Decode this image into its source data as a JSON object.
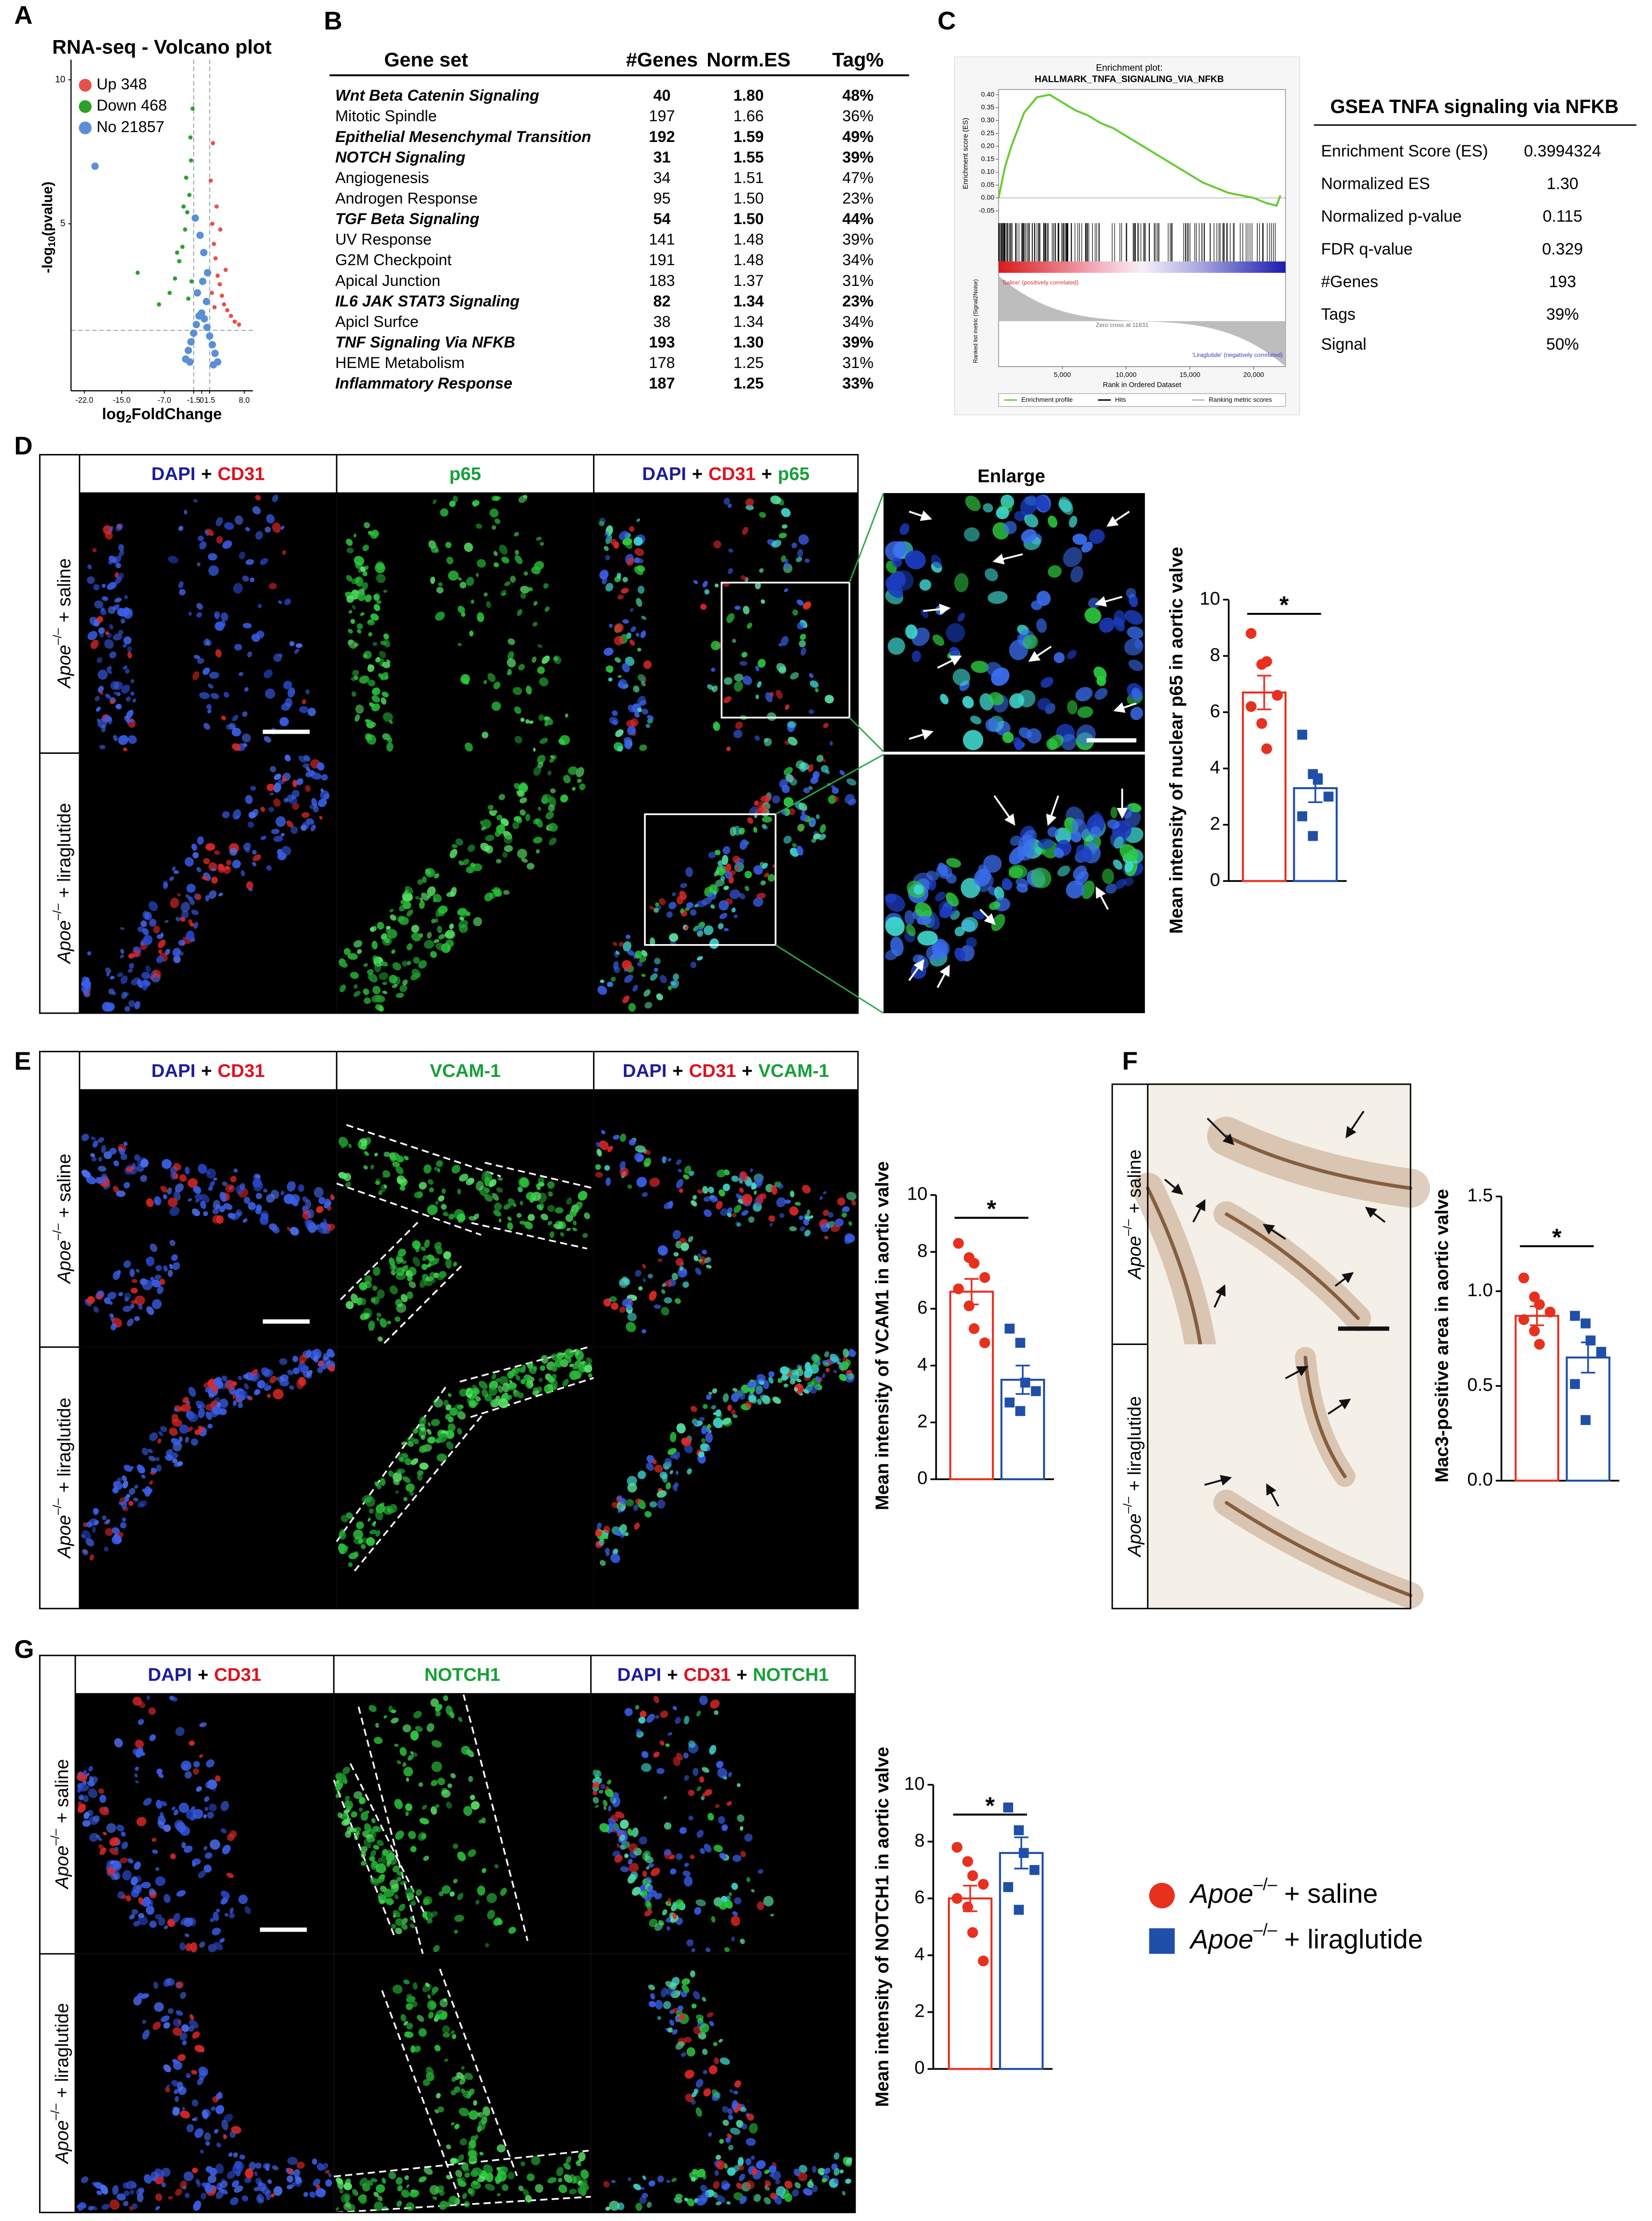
{
  "panels": [
    "A",
    "B",
    "C",
    "D",
    "E",
    "F",
    "G"
  ],
  "groups": [
    {
      "gene": "Apoe",
      "genotype": "–/–",
      "treatment": "+ saline",
      "color": "#e8301f",
      "marker": "circle"
    },
    {
      "gene": "Apoe",
      "genotype": "–/–",
      "treatment": "+ liraglutide",
      "color": "#1f4fa8",
      "marker": "square"
    }
  ],
  "table": {
    "columns": [
      "Gene set",
      "#Genes",
      "Norm.ES",
      "Tag%"
    ],
    "rows": [
      {
        "cells": [
          "Wnt Beta Catenin Signaling",
          "40",
          "1.80",
          "48%"
        ],
        "bold": true
      },
      {
        "cells": [
          "Mitotic Spindle",
          "197",
          "1.66",
          "36%"
        ],
        "bold": false
      },
      {
        "cells": [
          "Epithelial Mesenchymal Transition",
          "192",
          "1.59",
          "49%"
        ],
        "bold": true
      },
      {
        "cells": [
          "NOTCH Signaling",
          "31",
          "1.55",
          "39%"
        ],
        "bold": true
      },
      {
        "cells": [
          "Angiogenesis",
          "34",
          "1.51",
          "47%"
        ],
        "bold": false
      },
      {
        "cells": [
          "Androgen Response",
          "95",
          "1.50",
          "23%"
        ],
        "bold": false
      },
      {
        "cells": [
          "TGF Beta Signaling",
          "54",
          "1.50",
          "44%"
        ],
        "bold": true
      },
      {
        "cells": [
          "UV Response",
          "141",
          "1.48",
          "39%"
        ],
        "bold": false
      },
      {
        "cells": [
          "G2M Checkpoint",
          "191",
          "1.48",
          "34%"
        ],
        "bold": false
      },
      {
        "cells": [
          "Apical Junction",
          "183",
          "1.37",
          "31%"
        ],
        "bold": false
      },
      {
        "cells": [
          "IL6 JAK STAT3 Signaling",
          "82",
          "1.34",
          "23%"
        ],
        "bold": true
      },
      {
        "cells": [
          "Apicl Surfce",
          "38",
          "1.34",
          "34%"
        ],
        "bold": false
      },
      {
        "cells": [
          "TNF Signaling Via NFKB",
          "193",
          "1.30",
          "39%"
        ],
        "bold": true
      },
      {
        "cells": [
          "HEME Metabolism",
          "178",
          "1.25",
          "31%"
        ],
        "bold": false
      },
      {
        "cells": [
          "Inflammatory Response",
          "187",
          "1.25",
          "33%"
        ],
        "bold": true
      }
    ]
  },
  "gsea_table": {
    "title": "GSEA TNFA signaling via NFKB",
    "rows": [
      [
        "Enrichment Score (ES)",
        "0.3994324"
      ],
      [
        "Normalized ES",
        "1.30"
      ],
      [
        "Normalized p-value",
        "0.115"
      ],
      [
        "FDR q-value",
        "0.329"
      ],
      [
        "#Genes",
        "193"
      ],
      [
        "Tags",
        "39%"
      ],
      [
        "Signal",
        "50%"
      ]
    ]
  },
  "image_headers": {
    "D": [
      [
        {
          "text": "DAPI",
          "color": "#1c1c9c"
        },
        {
          "text": "+",
          "color": "#000000"
        },
        {
          "text": "CD31",
          "color": "#e0101e"
        }
      ],
      [
        {
          "text": "p65",
          "color": "#16a038"
        }
      ],
      [
        {
          "text": "DAPI",
          "color": "#1c1c9c"
        },
        {
          "text": "+",
          "color": "#000000"
        },
        {
          "text": "CD31",
          "color": "#e0101e"
        },
        {
          "text": "+",
          "color": "#000000"
        },
        {
          "text": "p65",
          "color": "#16a038"
        }
      ]
    ],
    "E": [
      [
        {
          "text": "DAPI",
          "color": "#1c1c9c"
        },
        {
          "text": "+",
          "color": "#000000"
        },
        {
          "text": "CD31",
          "color": "#e0101e"
        }
      ],
      [
        {
          "text": "VCAM-1",
          "color": "#16a038"
        }
      ],
      [
        {
          "text": "DAPI",
          "color": "#1c1c9c"
        },
        {
          "text": "+",
          "color": "#000000"
        },
        {
          "text": "CD31",
          "color": "#e0101e"
        },
        {
          "text": "+",
          "color": "#000000"
        },
        {
          "text": "VCAM-1",
          "color": "#16a038"
        }
      ]
    ],
    "G": [
      [
        {
          "text": "DAPI",
          "color": "#1c1c9c"
        },
        {
          "text": "+",
          "color": "#000000"
        },
        {
          "text": "CD31",
          "color": "#e0101e"
        }
      ],
      [
        {
          "text": "NOTCH1",
          "color": "#16a038"
        }
      ],
      [
        {
          "text": "DAPI",
          "color": "#1c1c9c"
        },
        {
          "text": "+",
          "color": "#000000"
        },
        {
          "text": "CD31",
          "color": "#e0101e"
        },
        {
          "text": "+",
          "color": "#000000"
        },
        {
          "text": "NOTCH1",
          "color": "#16a038"
        }
      ]
    ]
  },
  "enlarge_label": "Enlarge",
  "chart_data": [
    {
      "type": "scatter",
      "title": "RNA-seq - Volcano plot",
      "x_label": [
        "log",
        "2",
        "FoldChange"
      ],
      "y_label": [
        "-log",
        "10",
        "(pvalue)"
      ],
      "xlim": [
        -24.5,
        9.6
      ],
      "ylim": [
        -0.8,
        10.7
      ],
      "xticks": [
        {
          "value": -22,
          "label": "-22.0"
        },
        {
          "value": -15,
          "label": "-15.0"
        },
        {
          "value": -7,
          "label": "-7.0"
        },
        -1.5,
        0,
        1.5,
        {
          "value": 8,
          "label": "8.0"
        }
      ],
      "yticks": [
        5,
        10
      ],
      "thresholds": {
        "x": [
          -1.5,
          1.5
        ],
        "y": 1.3
      },
      "legend": "top-left",
      "series": [
        {
          "name": "Up 348",
          "color": "#e8504a",
          "x": [
            1.7,
            2.0,
            2.3,
            2.6,
            3.0,
            3.4,
            3.8,
            4.2,
            4.8,
            5.5,
            6.2,
            7.0,
            2.1,
            2.8,
            3.5,
            4.5,
            1.9,
            2.4
          ],
          "values": [
            6.5,
            5.0,
            4.3,
            3.8,
            3.2,
            2.9,
            2.5,
            2.2,
            2.0,
            1.8,
            1.6,
            1.5,
            7.8,
            5.6,
            4.8,
            3.4,
            2.6,
            2.1
          ]
        },
        {
          "name": "Down 468",
          "color": "#2ca02c",
          "x": [
            -1.7,
            -2.0,
            -2.3,
            -2.7,
            -3.1,
            -3.6,
            -4.2,
            -5.0,
            -6.0,
            -2.1,
            -2.9,
            -3.4,
            -4.6,
            -1.9,
            -2.5,
            -12.0,
            -8.0
          ],
          "values": [
            9.0,
            7.2,
            6.0,
            5.4,
            4.8,
            4.2,
            3.7,
            3.1,
            2.6,
            8.0,
            6.6,
            5.6,
            4.0,
            3.0,
            2.4,
            3.3,
            2.2
          ]
        },
        {
          "name": "No 21857",
          "color": "#5b8fd6",
          "x": [
            -3,
            -2.5,
            -2,
            -1.5,
            -1,
            -0.5,
            0,
            0.5,
            1,
            1.5,
            2,
            2.5,
            3,
            -1.2,
            -0.3,
            0.4,
            1.1,
            -0.8,
            0.2,
            0.9,
            -2.2,
            2.2,
            -20.0
          ],
          "values": [
            0.3,
            0.6,
            0.9,
            1.2,
            1.5,
            1.8,
            1.9,
            1.7,
            1.4,
            1.1,
            0.8,
            0.5,
            0.2,
            5.2,
            4.6,
            4.0,
            3.3,
            2.6,
            3.0,
            2.3,
            0.2,
            0.1,
            7.0
          ]
        }
      ]
    },
    {
      "type": "line",
      "title": [
        "Enrichment plot:",
        "HALLMARK_TNFA_SIGNALING_VIA_NFKB"
      ],
      "y_label": "Enrichment score (ES)",
      "x_label": "Rank in Ordered Dataset",
      "metric_label": "Ranked list metric (Signal2Noise)",
      "annotations": [
        {
          "text": "'Saline' (positively correlated)",
          "color": "#d03030"
        },
        {
          "text": "Zero cross at 11831",
          "color": "#666666"
        },
        {
          "text": "'Liraglutide' (negatively correlated)",
          "color": "#3040c0"
        }
      ],
      "xlim": [
        0,
        22500
      ],
      "ylim": [
        -0.07,
        0.42
      ],
      "xticks": [
        {
          "value": 5000,
          "label": "5,000"
        },
        {
          "value": 10000,
          "label": "10,000"
        },
        {
          "value": 15000,
          "label": "15,000"
        },
        {
          "value": 20000,
          "label": "20,000"
        }
      ],
      "yticks": [
        {
          "value": 0.4,
          "label": "0.40"
        },
        0.35,
        {
          "value": 0.3,
          "label": "0.30"
        },
        0.25,
        {
          "value": 0.2,
          "label": "0.20"
        },
        0.15,
        {
          "value": 0.1,
          "label": "0.10"
        },
        0.05,
        {
          "value": 0,
          "label": "0.00"
        },
        -0.05
      ],
      "series": [
        {
          "name": "Enrichment profile",
          "color": "#66cc33",
          "x": [
            0,
            500,
            1000,
            2000,
            3000,
            4000,
            5000,
            6000,
            7000,
            8000,
            9000,
            10000,
            11000,
            12000,
            13000,
            14000,
            15000,
            16000,
            17000,
            18000,
            19000,
            20000,
            21000,
            21800,
            22100
          ],
          "values": [
            0,
            0.12,
            0.2,
            0.33,
            0.39,
            0.4,
            0.37,
            0.34,
            0.32,
            0.29,
            0.27,
            0.24,
            0.21,
            0.18,
            0.15,
            0.12,
            0.09,
            0.06,
            0.04,
            0.02,
            0.01,
            0,
            -0.02,
            -0.03,
            0.01
          ]
        }
      ],
      "legend_extra": [
        {
          "name": "Hits",
          "color": "#000000"
        },
        {
          "name": "Ranking metric scores",
          "color": "#bbbbbb"
        }
      ]
    },
    {
      "type": "bar",
      "y_label": "Mean intensity of nuclear p65 in aortic valve",
      "ylim": [
        0,
        10
      ],
      "yticks": [
        0,
        2,
        4,
        6,
        8,
        10
      ],
      "significance": "*",
      "series": [
        {
          "color": "#e8301f",
          "marker": "circle",
          "value": 6.7,
          "error": 0.6,
          "points": [
            8.8,
            7.7,
            7.8,
            6.6,
            6.2,
            5.6,
            4.7
          ]
        },
        {
          "color": "#1f4fa8",
          "marker": "square",
          "value": 3.3,
          "error": 0.5,
          "points": [
            5.2,
            3.8,
            3.6,
            3.0,
            2.3,
            1.6
          ]
        }
      ]
    },
    {
      "type": "bar",
      "y_label": "Mean intensity of VCAM1 in aortic valve",
      "ylim": [
        0,
        10
      ],
      "yticks": [
        0,
        2,
        4,
        6,
        8,
        10
      ],
      "significance": "*",
      "series": [
        {
          "color": "#e8301f",
          "marker": "circle",
          "value": 6.6,
          "error": 0.45,
          "points": [
            8.3,
            7.8,
            7.6,
            7.1,
            6.7,
            6.1,
            5.3,
            4.8
          ]
        },
        {
          "color": "#1f4fa8",
          "marker": "square",
          "value": 3.5,
          "error": 0.5,
          "points": [
            5.3,
            4.8,
            3.4,
            3.1,
            2.7,
            2.4
          ]
        }
      ]
    },
    {
      "type": "bar",
      "y_label": "Mac3-positive area in aortic valve",
      "ylim": [
        0,
        1.5
      ],
      "yticks": [
        {
          "value": 0,
          "label": "0.0"
        },
        0.5,
        {
          "value": 1,
          "label": "1.0"
        },
        1.5
      ],
      "significance": "*",
      "series": [
        {
          "color": "#e8301f",
          "marker": "circle",
          "value": 0.87,
          "error": 0.05,
          "points": [
            1.07,
            0.97,
            0.93,
            0.89,
            0.85,
            0.79,
            0.72
          ]
        },
        {
          "color": "#1f4fa8",
          "marker": "square",
          "value": 0.65,
          "error": 0.08,
          "points": [
            0.87,
            0.83,
            0.74,
            0.68,
            0.51,
            0.32
          ]
        }
      ]
    },
    {
      "type": "bar",
      "y_label": "Mean intensity of NOTCH1 in aortic valve",
      "ylim": [
        0,
        10
      ],
      "yticks": [
        0,
        2,
        4,
        6,
        8,
        10
      ],
      "significance": "*",
      "series": [
        {
          "color": "#e8301f",
          "marker": "circle",
          "value": 6.0,
          "error": 0.45,
          "points": [
            7.8,
            7.3,
            6.8,
            6.5,
            6.0,
            5.7,
            4.8,
            3.8
          ]
        },
        {
          "color": "#1f4fa8",
          "marker": "square",
          "value": 7.6,
          "error": 0.55,
          "points": [
            9.2,
            8.4,
            7.6,
            7.0,
            6.4,
            5.6
          ]
        }
      ]
    }
  ]
}
